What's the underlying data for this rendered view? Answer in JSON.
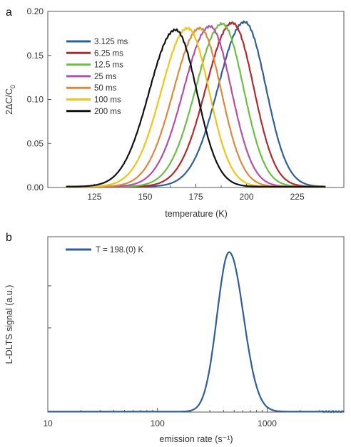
{
  "chart_data": [
    {
      "panel_label": "a",
      "type": "line",
      "xlabel": "temperature (K)",
      "ylabel": "2ΔC/C",
      "ylabel_subscript": "0",
      "xlim": [
        102,
        248
      ],
      "ylim": [
        0,
        0.2
      ],
      "x_ticks": [
        125,
        150,
        175,
        200,
        225
      ],
      "x_tick_labels": [
        "125",
        "150",
        "175",
        "200",
        "225"
      ],
      "y_ticks": [
        0,
        0.05,
        0.1,
        0.15,
        0.2
      ],
      "y_tick_labels": [
        "0.00",
        "0.05",
        "0.10",
        "0.15",
        "0.20"
      ],
      "grid": false,
      "legend_position": "top-left",
      "series": [
        {
          "name": "3.125 ms",
          "color": "#2f5f96",
          "peak_x": 199,
          "peak_y": 0.187
        },
        {
          "name": "6.25 ms",
          "color": "#b22a2e",
          "peak_x": 193,
          "peak_y": 0.186
        },
        {
          "name": "12.5 ms",
          "color": "#6cbf45",
          "peak_x": 188,
          "peak_y": 0.185
        },
        {
          "name": "25 ms",
          "color": "#b34fa6",
          "peak_x": 182,
          "peak_y": 0.182
        },
        {
          "name": "50 ms",
          "color": "#d98a3d",
          "peak_x": 177,
          "peak_y": 0.18
        },
        {
          "name": "100 ms",
          "color": "#f0c419",
          "peak_x": 171,
          "peak_y": 0.18
        },
        {
          "name": "200 ms",
          "color": "#111111",
          "peak_x": 165,
          "peak_y": 0.178
        }
      ]
    },
    {
      "panel_label": "b",
      "type": "line",
      "xlabel": "emission rate (s⁻¹)",
      "ylabel": "L-DLTS signal (a.u.)",
      "xscale": "log",
      "xlim": [
        10,
        5000
      ],
      "ylim": [
        0,
        1.1
      ],
      "x_ticks": [
        10,
        100,
        1000
      ],
      "x_tick_labels": [
        "10",
        "100",
        "1000"
      ],
      "grid": false,
      "legend_position": "top-left",
      "series": [
        {
          "name": "T = 198.(0) K",
          "color": "#2f5f96",
          "peak_x": 450,
          "peak_y": 1.0
        }
      ]
    }
  ]
}
